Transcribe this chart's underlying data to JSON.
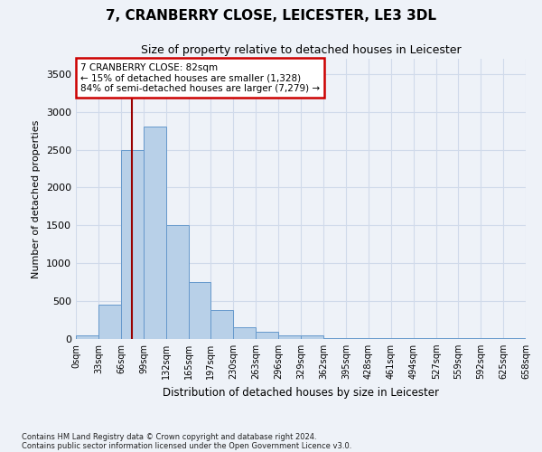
{
  "title1": "7, CRANBERRY CLOSE, LEICESTER, LE3 3DL",
  "title2": "Size of property relative to detached houses in Leicester",
  "xlabel": "Distribution of detached houses by size in Leicester",
  "ylabel": "Number of detached properties",
  "annotation_line1": "7 CRANBERRY CLOSE: 82sqm",
  "annotation_line2": "← 15% of detached houses are smaller (1,328)",
  "annotation_line3": "84% of semi-detached houses are larger (7,279) →",
  "property_size": 82,
  "bin_edges": [
    0,
    33,
    66,
    99,
    132,
    165,
    197,
    230,
    263,
    296,
    329,
    362,
    395,
    428,
    461,
    494,
    527,
    559,
    592,
    625,
    658
  ],
  "bin_labels": [
    "0sqm",
    "33sqm",
    "66sqm",
    "99sqm",
    "132sqm",
    "165sqm",
    "197sqm",
    "230sqm",
    "263sqm",
    "296sqm",
    "329sqm",
    "362sqm",
    "395sqm",
    "428sqm",
    "461sqm",
    "494sqm",
    "527sqm",
    "559sqm",
    "592sqm",
    "625sqm",
    "658sqm"
  ],
  "bar_heights": [
    50,
    450,
    2500,
    2800,
    1500,
    750,
    380,
    150,
    100,
    50,
    50,
    10,
    10,
    10,
    10,
    10,
    10,
    10,
    10,
    10
  ],
  "bar_color": "#b8d0e8",
  "bar_edge_color": "#6699cc",
  "grid_color": "#d0daea",
  "background_color": "#eef2f8",
  "axes_background": "#eef2f8",
  "red_line_color": "#990000",
  "annotation_box_edgecolor": "#cc0000",
  "ylim": [
    0,
    3700
  ],
  "yticks": [
    0,
    500,
    1000,
    1500,
    2000,
    2500,
    3000,
    3500
  ],
  "footnote1": "Contains HM Land Registry data © Crown copyright and database right 2024.",
  "footnote2": "Contains public sector information licensed under the Open Government Licence v3.0."
}
